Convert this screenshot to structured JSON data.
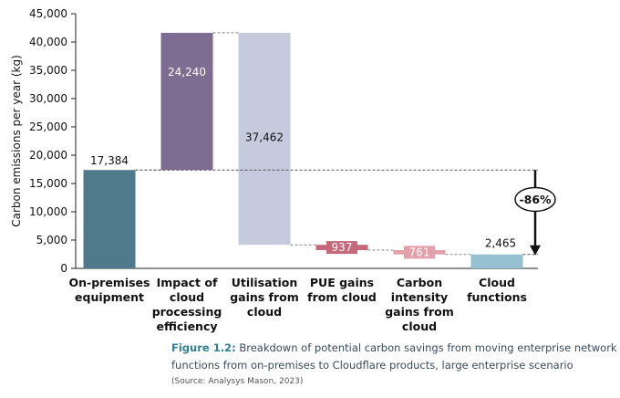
{
  "chart_data": {
    "type": "waterfall",
    "ylabel": "Carbon emissions per year (kg)",
    "ylim": [
      0,
      45000
    ],
    "yticks": [
      "0",
      "5,000",
      "10,000",
      "15,000",
      "20,000",
      "25,000",
      "30,000",
      "35,000",
      "40,000",
      "45,000"
    ],
    "categories": [
      "On-premises equipment",
      "Impact of cloud processing efficiency",
      "Utilisation gains from cloud",
      "PUE gains from cloud",
      "Carbon intensity gains from cloud",
      "Cloud functions"
    ],
    "bars": [
      {
        "category": "On-premises equipment",
        "start": 0,
        "end": 17384,
        "value": 17384,
        "label": "17,384",
        "color": "#4e7a8c"
      },
      {
        "category": "Impact of cloud processing efficiency",
        "start": 17384,
        "end": 41624,
        "value": 24240,
        "label": "24,240",
        "color": "#7f6c93"
      },
      {
        "category": "Utilisation gains from cloud",
        "start": 41624,
        "end": 4162,
        "value": -37462,
        "label": "37,462",
        "color": "#c5cbdc"
      },
      {
        "category": "PUE gains from cloud",
        "start": 4162,
        "end": 3225,
        "value": -937,
        "label": "937",
        "color": "#c5697a"
      },
      {
        "category": "Carbon intensity gains from cloud",
        "start": 3225,
        "end": 2464,
        "value": -761,
        "label": "761",
        "color": "#e2a0aa"
      },
      {
        "category": "Cloud functions",
        "start": 0,
        "end": 2465,
        "value": 2465,
        "label": "2,465",
        "color": "#94c0cf"
      }
    ],
    "annotation": "-86%"
  },
  "caption": {
    "figure_label": "Figure 1.2:",
    "text": "Breakdown of potential carbon savings from moving enterprise network functions from on-premises to Cloudflare products, large enterprise scenario",
    "source": "(Source: Analysys Mason, 2023)"
  }
}
